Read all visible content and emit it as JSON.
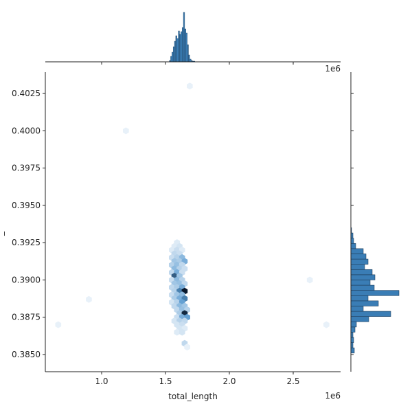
{
  "chart_data": [
    {
      "type": "hexbin",
      "xlabel": "total_length",
      "ylabel": "_",
      "x_offset": "1e6",
      "y_offset": "1e6",
      "x": [
        1.59,
        1.57,
        1.61,
        1.55,
        1.59,
        1.63,
        1.57,
        1.61,
        1.55,
        1.59,
        1.63,
        1.57,
        1.61,
        1.65,
        1.55,
        1.59,
        1.63,
        1.57,
        1.61,
        1.65,
        1.55,
        1.59,
        1.63,
        1.57,
        1.61,
        1.55,
        1.59,
        1.63,
        1.57,
        1.61,
        1.65,
        1.55,
        1.59,
        1.63,
        1.57,
        1.61,
        1.65,
        1.55,
        1.59,
        1.63,
        1.57,
        1.61,
        1.65,
        1.55,
        1.59,
        1.63,
        1.57,
        1.61,
        1.65,
        1.59,
        1.63,
        1.67,
        1.61,
        1.65,
        1.59,
        1.63,
        1.67,
        1.57,
        1.61,
        1.65,
        1.59,
        1.63,
        1.61,
        1.65,
        1.59,
        1.63,
        1.65,
        1.67,
        1.19,
        1.69,
        0.9,
        2.63,
        2.76,
        0.66
      ],
      "y": [
        0.3925,
        0.39225,
        0.39225,
        0.392,
        0.392,
        0.392,
        0.39175,
        0.39175,
        0.3915,
        0.3915,
        0.3915,
        0.39125,
        0.39125,
        0.39125,
        0.391,
        0.391,
        0.391,
        0.39075,
        0.39075,
        0.39075,
        0.3905,
        0.3905,
        0.3905,
        0.39025,
        0.39025,
        0.39,
        0.39,
        0.39,
        0.38975,
        0.38975,
        0.38975,
        0.3895,
        0.3895,
        0.3895,
        0.38925,
        0.38925,
        0.38925,
        0.389,
        0.389,
        0.389,
        0.38875,
        0.38875,
        0.38875,
        0.3885,
        0.3885,
        0.3885,
        0.38825,
        0.38825,
        0.38825,
        0.388,
        0.388,
        0.388,
        0.38775,
        0.38775,
        0.3875,
        0.3875,
        0.3875,
        0.38725,
        0.38725,
        0.38725,
        0.387,
        0.387,
        0.38675,
        0.38675,
        0.3865,
        0.3865,
        0.38575,
        0.3855,
        0.4,
        0.403,
        0.3887,
        0.39,
        0.387,
        0.387
      ],
      "values": [
        2,
        2,
        3,
        2,
        4,
        2,
        5,
        4,
        4,
        6,
        10,
        8,
        7,
        12,
        6,
        9,
        5,
        10,
        6,
        4,
        5,
        12,
        4,
        22,
        8,
        4,
        10,
        6,
        8,
        9,
        5,
        5,
        7,
        12,
        6,
        18,
        30,
        4,
        8,
        10,
        7,
        12,
        18,
        3,
        6,
        14,
        5,
        10,
        8,
        5,
        9,
        6,
        7,
        28,
        4,
        12,
        14,
        3,
        6,
        5,
        3,
        4,
        3,
        2,
        2,
        3,
        5,
        1,
        1,
        1,
        1,
        1,
        1,
        1
      ],
      "xlim": [
        0.559,
        2.871
      ],
      "ylim": [
        0.38385,
        0.40393
      ],
      "xticks": [
        {
          "value": 1,
          "label": "1.0"
        },
        {
          "value": 1.5,
          "label": "1.5"
        },
        {
          "value": 2,
          "label": "2.0"
        },
        {
          "value": 2.5,
          "label": "2.5"
        }
      ],
      "yticks": [
        {
          "value": 0.385,
          "label": "0.3850"
        },
        {
          "value": 0.3875,
          "label": "0.3875"
        },
        {
          "value": 0.39,
          "label": "0.3900"
        },
        {
          "value": 0.3925,
          "label": "0.3925"
        },
        {
          "value": 0.395,
          "label": "0.3950"
        },
        {
          "value": 0.3975,
          "label": "0.3975"
        },
        {
          "value": 0.4,
          "label": "0.4000"
        },
        {
          "value": 0.4025,
          "label": "0.4025"
        }
      ],
      "colors": [
        "#f2f7fc",
        "#5b9bd0",
        "#08172b"
      ]
    },
    {
      "type": "histogram",
      "orientation": "vertical",
      "color": "#3a7db5",
      "edgecolor": "#1d3d5a",
      "bins": [
        1.53,
        1.54,
        1.55,
        1.56,
        1.57,
        1.58,
        1.59,
        1.6,
        1.61,
        1.62,
        1.63,
        1.64,
        1.65,
        1.66,
        1.67,
        1.68,
        1.69,
        1.7,
        1.71,
        1.72,
        1.73
      ],
      "values": [
        2,
        8,
        14,
        22,
        30,
        38,
        34,
        45,
        40,
        44,
        50,
        72,
        48,
        42,
        25,
        10,
        4,
        2,
        1,
        1
      ],
      "xlim": [
        0.559,
        2.871
      ],
      "ylim": [
        0,
        75
      ]
    },
    {
      "type": "histogram",
      "orientation": "horizontal",
      "color": "#3a7db5",
      "edgecolor": "#1d3d5a",
      "bins": [
        0.3851,
        0.38545,
        0.3858,
        0.38615,
        0.3865,
        0.38685,
        0.3872,
        0.38755,
        0.3879,
        0.38825,
        0.3886,
        0.38895,
        0.3893,
        0.38965,
        0.39,
        0.39035,
        0.3907,
        0.39105,
        0.3914,
        0.39175,
        0.3921,
        0.39245,
        0.3928,
        0.39315,
        0.3935
      ],
      "values": [
        5,
        3,
        4,
        3,
        6,
        8,
        26,
        58,
        18,
        40,
        25,
        70,
        34,
        28,
        35,
        31,
        20,
        25,
        22,
        18,
        7,
        4,
        3,
        1
      ],
      "ylim": [
        0.38385,
        0.40393
      ],
      "xlim": [
        0,
        85
      ]
    }
  ]
}
